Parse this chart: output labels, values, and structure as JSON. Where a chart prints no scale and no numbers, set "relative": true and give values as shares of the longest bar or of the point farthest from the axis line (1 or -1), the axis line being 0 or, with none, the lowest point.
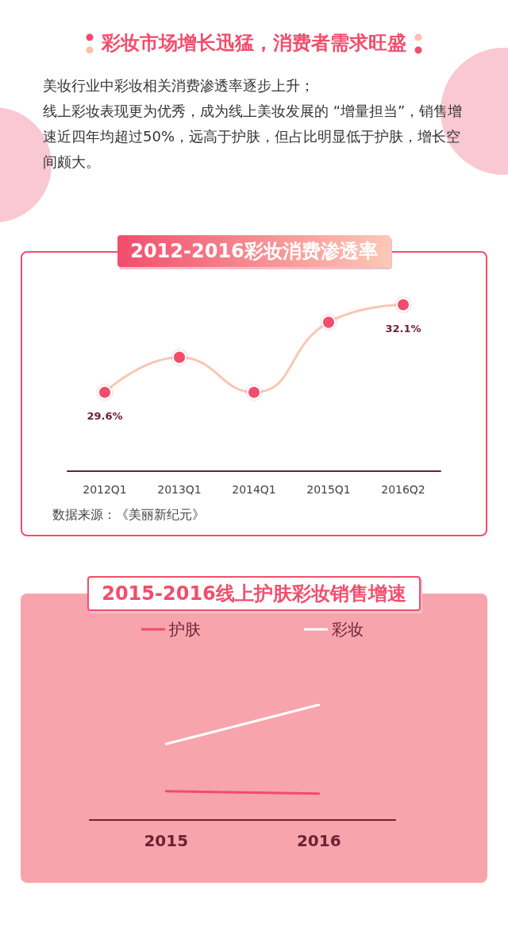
{
  "chart_data": [
    {
      "type": "other",
      "title": "彩妆市场增长迅猛，消费者需求旺盛",
      "annotations": [
        "美妆行业中彩妆相关消费渗透率逐步上升；",
        "线上彩妆表现更为优秀，成为线上美妆发展的 “增量担当”，销售增速近四年均超过50%，远高于护肤，但占比明显低于护肤，增长空间颇大。"
      ]
    },
    {
      "type": "line",
      "title": "2012-2016彩妆消费渗透率",
      "categories": [
        "2012Q1",
        "2013Q1",
        "2014Q1",
        "2015Q1",
        "2016Q2"
      ],
      "tick_labels": "x",
      "grid": false,
      "marker": "circle",
      "line_style": "solid",
      "legend": false,
      "series": [
        {
          "color": "#f9c6b4",
          "values": [
            29.6,
            30.6,
            29.6,
            31.6,
            32.1
          ],
          "value_labels": [
            "29.6%",
            null,
            null,
            null,
            "32.1%"
          ]
        }
      ],
      "annotations": [
        "数据来源：《美丽新纪元》"
      ]
    },
    {
      "type": "line",
      "title": "2015-2016线上护肤彩妆销售增速",
      "categories": [
        "2015",
        "2016"
      ],
      "relative": true,
      "legend": "top",
      "marker": "none",
      "line_style": "solid",
      "grid": false,
      "series": [
        {
          "name": "护肤",
          "color": "#f24a6e",
          "values": [
            0.25,
            0.23
          ]
        },
        {
          "name": "彩妆",
          "color": "#ffffff",
          "values": [
            0.66,
            1
          ]
        }
      ]
    }
  ]
}
